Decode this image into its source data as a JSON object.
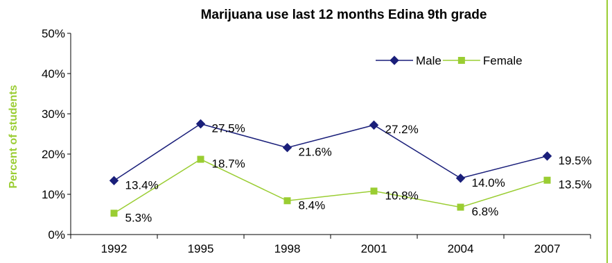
{
  "chart_data": {
    "type": "line",
    "title": "Marijuana use last 12 months Edina 9th grade",
    "ylabel": "Percent of students",
    "xlabel": "",
    "categories": [
      "1992",
      "1995",
      "1998",
      "2001",
      "2004",
      "2007"
    ],
    "y_ticks": [
      "0%",
      "10%",
      "20%",
      "30%",
      "40%",
      "50%"
    ],
    "ylim": [
      0,
      50
    ],
    "grid": false,
    "legend_position": "top-right",
    "series": [
      {
        "name": "Male",
        "color": "#1a1f7a",
        "marker": "diamond",
        "values": [
          13.4,
          27.5,
          21.6,
          27.2,
          14.0,
          19.5
        ],
        "labels": [
          "13.4%",
          "27.5%",
          "21.6%",
          "27.2%",
          "14.0%",
          "19.5%"
        ]
      },
      {
        "name": "Female",
        "color": "#9acd32",
        "marker": "square",
        "values": [
          5.3,
          18.7,
          8.4,
          10.8,
          6.8,
          13.5
        ],
        "labels": [
          "5.3%",
          "18.7%",
          "8.4%",
          "10.8%",
          "6.8%",
          "13.5%"
        ]
      }
    ],
    "ylabel_color": "#9acd32",
    "frame_color": "#9acd32"
  }
}
